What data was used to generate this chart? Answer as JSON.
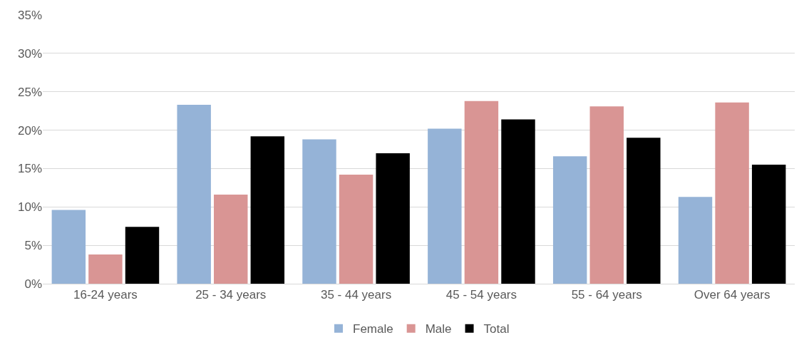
{
  "chart_data": {
    "type": "bar",
    "categories": [
      "16-24 years",
      "25 - 34 years",
      "35 - 44 years",
      "45 - 54 years",
      "55 - 64 years",
      "Over 64 years"
    ],
    "series": [
      {
        "name": "Female",
        "color": "#95b3d7",
        "values": [
          9.6,
          23.3,
          18.8,
          20.2,
          16.6,
          11.3
        ]
      },
      {
        "name": "Male",
        "color": "#d99594",
        "values": [
          3.8,
          11.6,
          14.2,
          23.8,
          23.1,
          23.6
        ]
      },
      {
        "name": "Total",
        "color": "#000000",
        "values": [
          7.4,
          19.2,
          17.0,
          21.4,
          19.0,
          15.5
        ]
      }
    ],
    "ylim": [
      0,
      35
    ],
    "yticks": [
      {
        "value": 0,
        "label": "0%"
      },
      {
        "value": 5,
        "label": "5%"
      },
      {
        "value": 10,
        "label": "10%"
      },
      {
        "value": 15,
        "label": "15%"
      },
      {
        "value": 20,
        "label": "20%"
      },
      {
        "value": 25,
        "label": "25%"
      },
      {
        "value": 30,
        "label": "30%"
      },
      {
        "value": 35,
        "label": "35%"
      }
    ],
    "grid": "y",
    "legend": "bottom"
  }
}
